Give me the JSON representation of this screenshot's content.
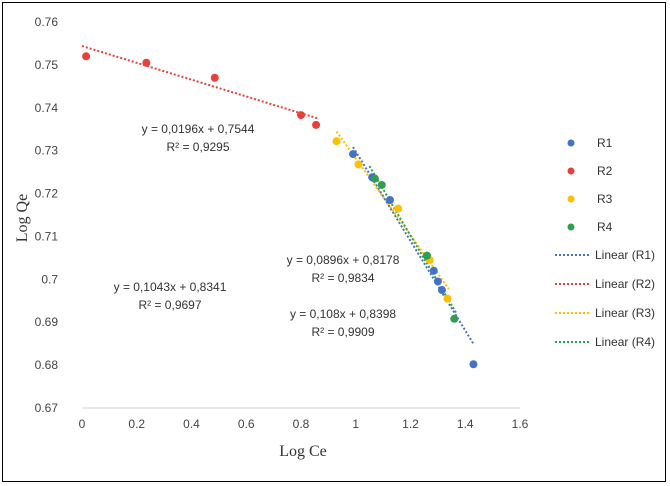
{
  "chart_data": {
    "type": "scatter",
    "title": "",
    "xlabel": "Log Ce",
    "ylabel": "Log Qe",
    "xlim": [
      0,
      1.6
    ],
    "ylim": [
      0.67,
      0.76
    ],
    "x_ticks": [
      "0",
      "0.2",
      "0.4",
      "0.6",
      "0.8",
      "1",
      "1.2",
      "1.4",
      "1.6"
    ],
    "y_ticks": [
      "0.67",
      "0.68",
      "0.69",
      "0.7",
      "0.71",
      "0.72",
      "0.73",
      "0.74",
      "0.75",
      "0.76"
    ],
    "grid": false,
    "legend_position": "right",
    "series": [
      {
        "name": "R1",
        "color": "#4472C4",
        "points": [
          [
            0.99,
            0.7292
          ],
          [
            1.06,
            0.7238
          ],
          [
            1.125,
            0.7185
          ],
          [
            1.26,
            0.7055
          ],
          [
            1.285,
            0.702
          ],
          [
            1.3,
            0.6995
          ],
          [
            1.315,
            0.6975
          ],
          [
            1.43,
            0.6802
          ]
        ],
        "trendline": {
          "label": "Linear (R1)",
          "slope": -0.1043,
          "intercept": 0.8341,
          "x_range": [
            0.99,
            1.43
          ]
        }
      },
      {
        "name": "R2",
        "color": "#E8403A",
        "points": [
          [
            0.015,
            0.752
          ],
          [
            0.235,
            0.7505
          ],
          [
            0.485,
            0.747
          ],
          [
            0.8,
            0.7383
          ],
          [
            0.855,
            0.736
          ]
        ],
        "trendline": {
          "label": "Linear (R2)",
          "slope": -0.0196,
          "intercept": 0.7544,
          "x_range": [
            0.0,
            0.86
          ]
        }
      },
      {
        "name": "R3",
        "color": "#FFC000",
        "points": [
          [
            0.93,
            0.7322
          ],
          [
            1.01,
            0.7268
          ],
          [
            1.155,
            0.7165
          ],
          [
            1.27,
            0.7045
          ],
          [
            1.335,
            0.6955
          ]
        ],
        "trendline": {
          "label": "Linear (R3)",
          "slope": -0.0896,
          "intercept": 0.8178,
          "x_range": [
            0.93,
            1.34
          ]
        }
      },
      {
        "name": "R4",
        "color": "#2E9E4F",
        "points": [
          [
            1.07,
            0.7235
          ],
          [
            1.095,
            0.722
          ],
          [
            1.26,
            0.7055
          ],
          [
            1.36,
            0.6908
          ]
        ],
        "trendline": {
          "label": "Linear (R4)",
          "slope": -0.108,
          "intercept": 0.8398,
          "x_range": [
            1.05,
            1.37
          ]
        }
      }
    ],
    "annotations": [
      {
        "id": "eq-r2",
        "equation": "y = 0,0196x + 0,7544",
        "r2": "R² = 0,9295"
      },
      {
        "id": "eq-r1",
        "equation": "y = 0,1043x + 0,8341",
        "r2": "R² = 0,9697"
      },
      {
        "id": "eq-r3",
        "equation": "y = 0,0896x + 0,8178",
        "r2": "R² = 0,9834"
      },
      {
        "id": "eq-r4",
        "equation": "y = 0,108x + 0,8398",
        "r2": "R² = 0,9909"
      }
    ]
  }
}
